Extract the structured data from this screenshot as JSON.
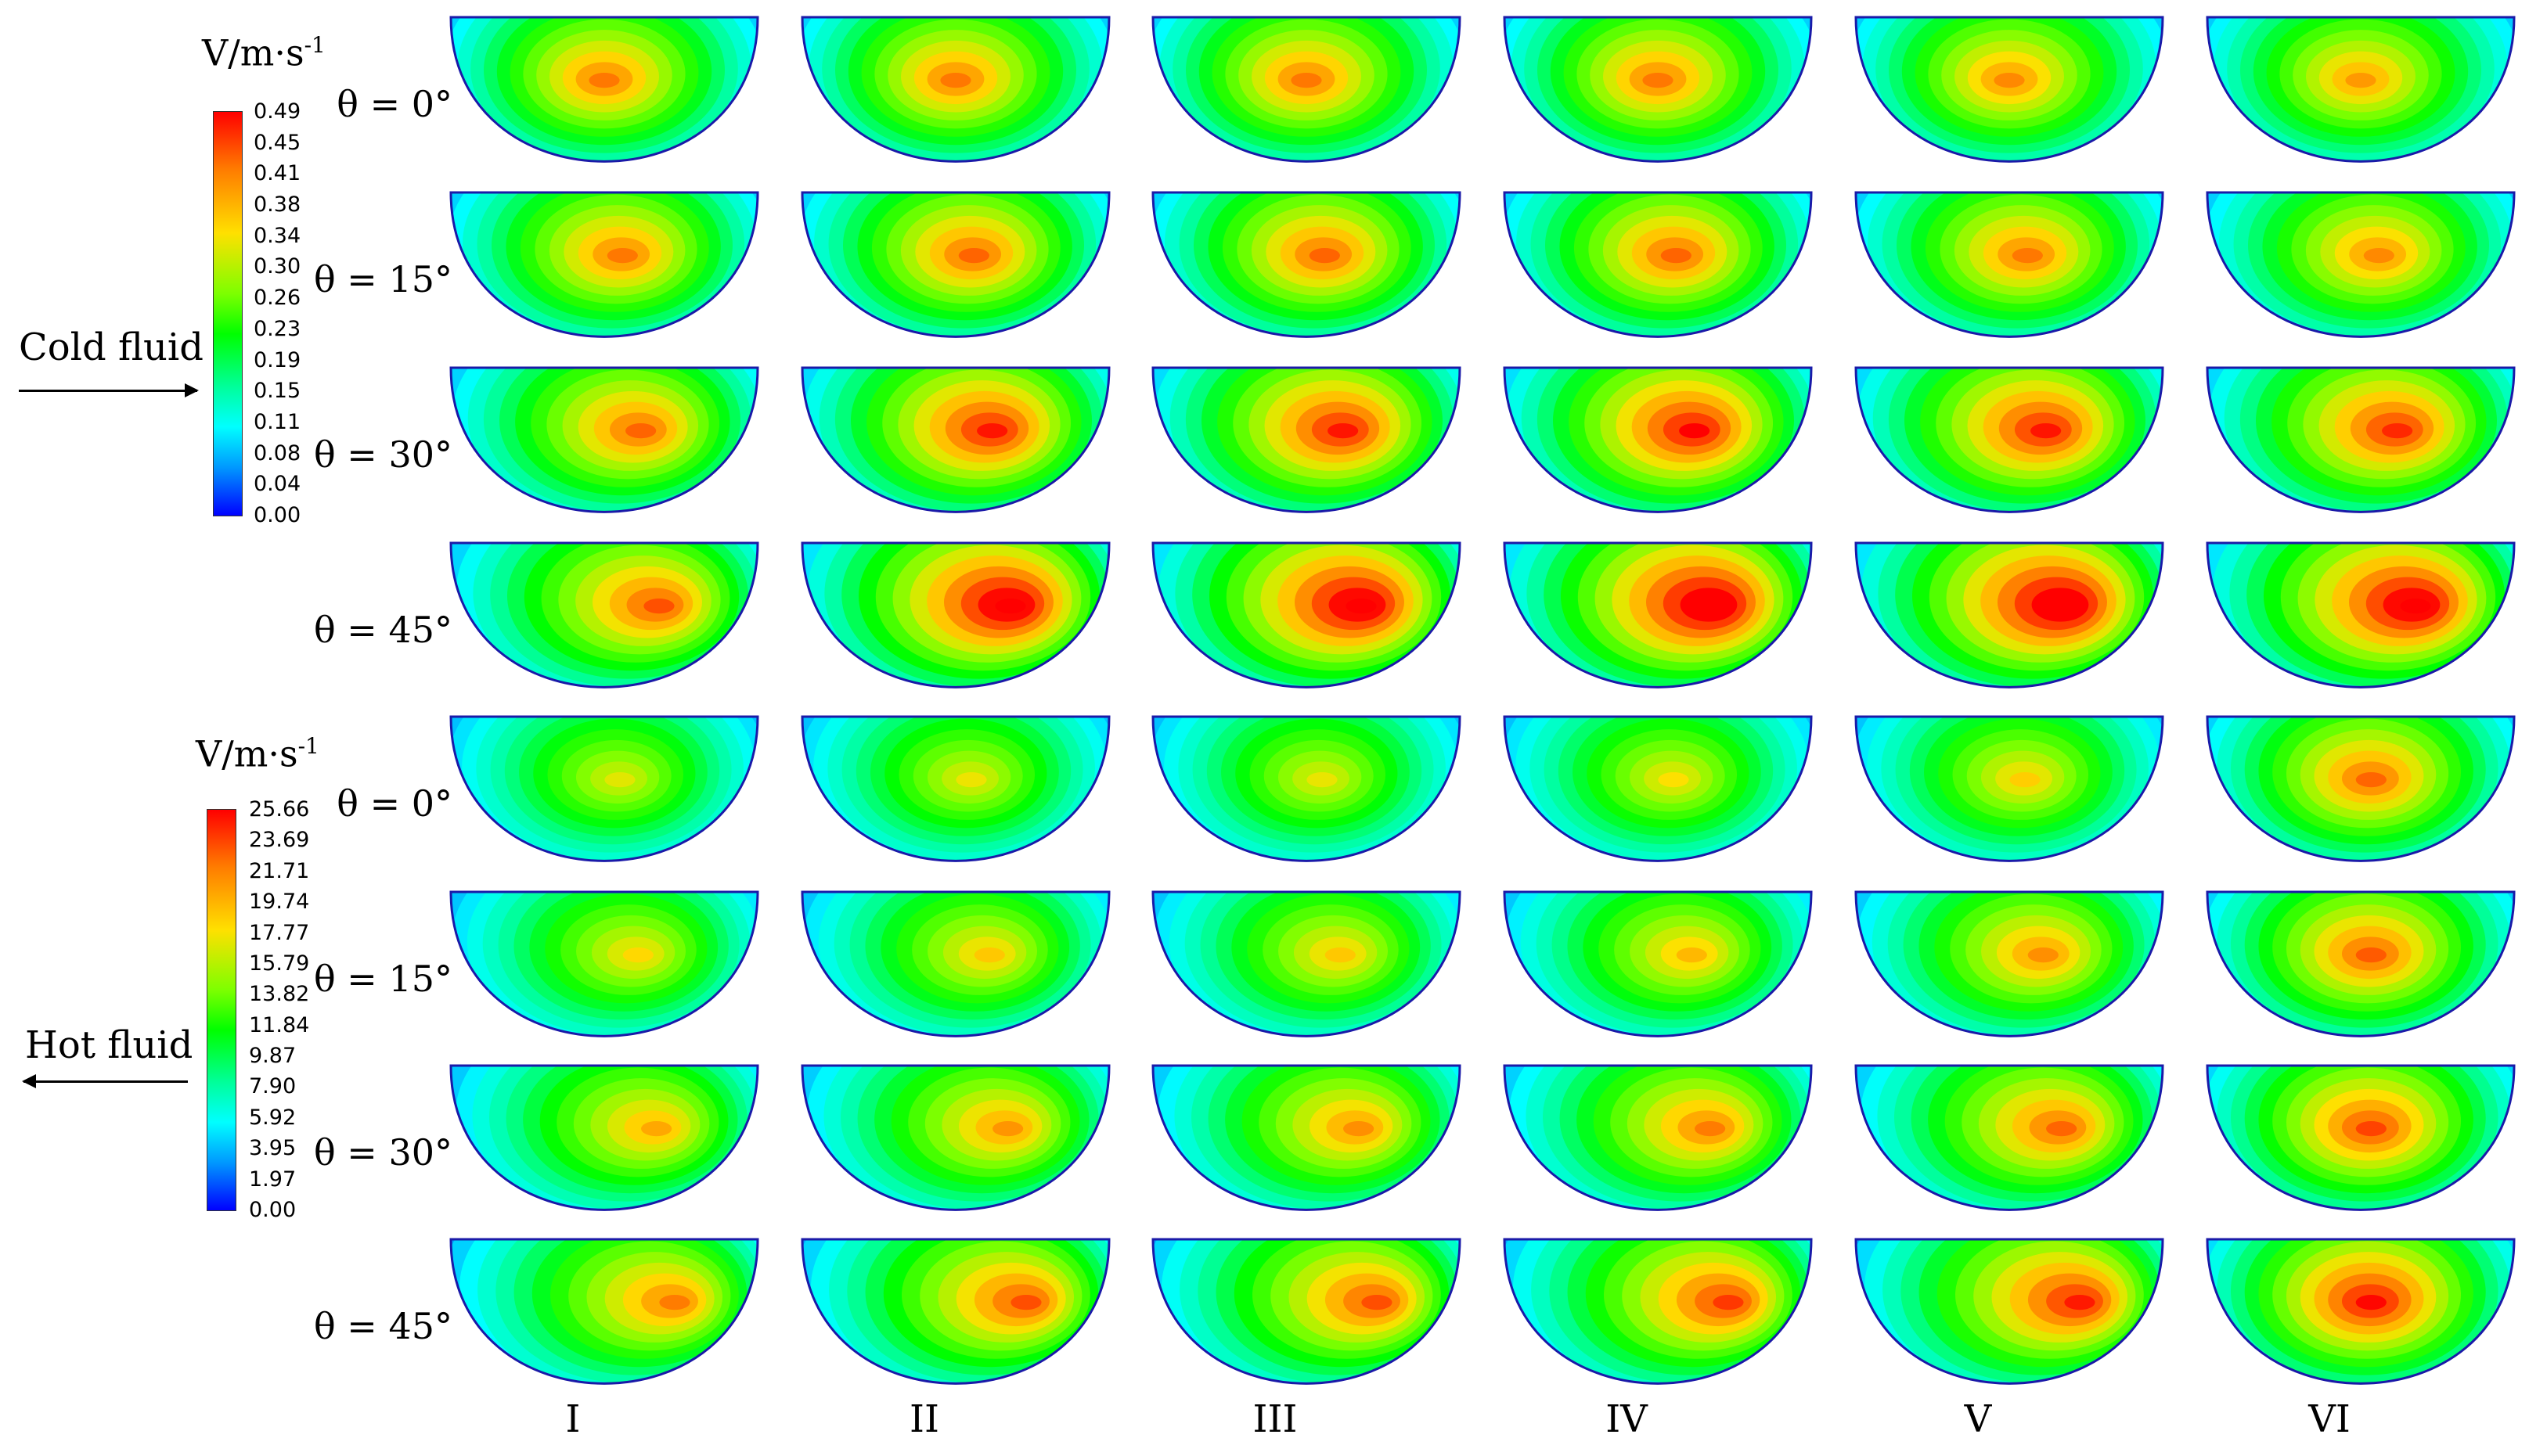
{
  "cold": {
    "unit": "V/m·s",
    "unit_sup": "-1",
    "ticks": [
      "0.49",
      "0.45",
      "0.41",
      "0.38",
      "0.34",
      "0.30",
      "0.26",
      "0.23",
      "0.19",
      "0.15",
      "0.11",
      "0.08",
      "0.04",
      "0.00"
    ],
    "flow_label": "Cold fluid",
    "flow_direction": "right",
    "angles": [
      "θ = 0°",
      "θ = 15°",
      "θ = 30°",
      "θ = 45°"
    ]
  },
  "hot": {
    "unit": "V/m·s",
    "unit_sup": "-1",
    "ticks": [
      "25.66",
      "23.69",
      "21.71",
      "19.74",
      "17.77",
      "15.79",
      "13.82",
      "11.84",
      "9.87",
      "7.90",
      "5.92",
      "3.95",
      "1.97",
      "0.00"
    ],
    "flow_label": "Hot fluid",
    "flow_direction": "left",
    "angles": [
      "θ = 0°",
      "θ = 15°",
      "θ = 30°",
      "θ = 45°"
    ]
  },
  "columns": [
    "I",
    "II",
    "III",
    "IV",
    "V",
    "VI"
  ],
  "colormap": [
    "#0000ff",
    "#0099ff",
    "#00ffff",
    "#00ff9a",
    "#00ff00",
    "#7dff00",
    "#ffe000",
    "#ff7a00",
    "#ff0000"
  ],
  "velocity_levels": {
    "cold": [
      [
        0.43,
        0.43,
        0.43,
        0.43,
        0.42,
        0.41
      ],
      [
        0.43,
        0.44,
        0.44,
        0.44,
        0.43,
        0.42
      ],
      [
        0.44,
        0.48,
        0.48,
        0.49,
        0.48,
        0.47
      ],
      [
        0.45,
        0.52,
        0.52,
        0.53,
        0.53,
        0.52
      ]
    ],
    "hot": [
      [
        18.5,
        18.8,
        18.7,
        19.2,
        19.8,
        23.0
      ],
      [
        19.5,
        20.0,
        20.0,
        20.5,
        21.8,
        23.3
      ],
      [
        21.0,
        21.6,
        21.8,
        22.4,
        23.0,
        23.9
      ],
      [
        22.4,
        23.6,
        23.6,
        24.2,
        25.0,
        25.5
      ]
    ]
  }
}
